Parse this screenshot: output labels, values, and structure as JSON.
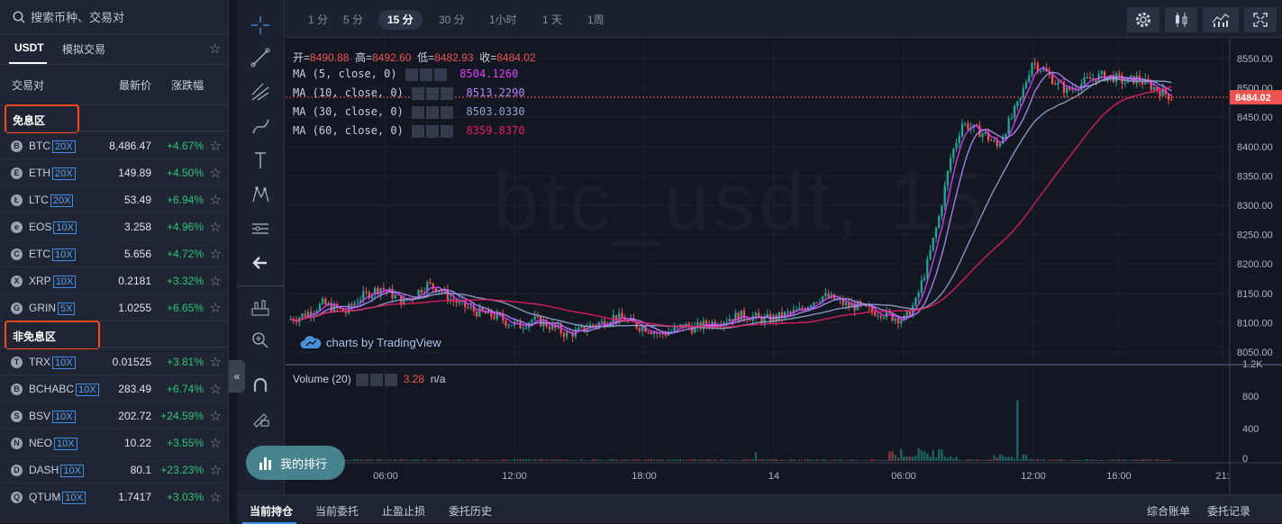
{
  "search": {
    "placeholder": "搜索币种、交易对"
  },
  "tabs": [
    {
      "label": "USDT"
    },
    {
      "label": "模拟交易"
    }
  ],
  "columns": {
    "pair": "交易对",
    "price": "最新价",
    "change": "涨跌幅"
  },
  "zones": [
    {
      "label": "免息区",
      "rows": [
        {
          "symbol": "BTC",
          "leverage": "20X",
          "price": "8,486.47",
          "change": "+4.67%",
          "icon": "B"
        },
        {
          "symbol": "ETH",
          "leverage": "20X",
          "price": "149.89",
          "change": "+4.50%",
          "icon": "E"
        },
        {
          "symbol": "LTC",
          "leverage": "20X",
          "price": "53.49",
          "change": "+6.94%",
          "icon": "Ł"
        },
        {
          "symbol": "EOS",
          "leverage": "10X",
          "price": "3.258",
          "change": "+4.96%",
          "icon": "e"
        },
        {
          "symbol": "ETC",
          "leverage": "10X",
          "price": "5.656",
          "change": "+4.72%",
          "icon": "C"
        },
        {
          "symbol": "XRP",
          "leverage": "10X",
          "price": "0.2181",
          "change": "+3.32%",
          "icon": "X"
        },
        {
          "symbol": "GRIN",
          "leverage": "5X",
          "price": "1.0255",
          "change": "+6.65%",
          "icon": "G"
        }
      ]
    },
    {
      "label": "非免息区",
      "rows": [
        {
          "symbol": "TRX",
          "leverage": "10X",
          "price": "0.01525",
          "change": "+3.81%",
          "icon": "T"
        },
        {
          "symbol": "BCHABC",
          "leverage": "10X",
          "price": "283.49",
          "change": "+6.74%",
          "icon": "B"
        },
        {
          "symbol": "BSV",
          "leverage": "10X",
          "price": "202.72",
          "change": "+24.59%",
          "icon": "S"
        },
        {
          "symbol": "NEO",
          "leverage": "10X",
          "price": "10.22",
          "change": "+3.55%",
          "icon": "N"
        },
        {
          "symbol": "DASH",
          "leverage": "10X",
          "price": "80.1",
          "change": "+23.23%",
          "icon": "D"
        },
        {
          "symbol": "QTUM",
          "leverage": "10X",
          "price": "1.7417",
          "change": "+3.03%",
          "icon": "Q"
        }
      ]
    }
  ],
  "timeframes": [
    "1 分",
    "5 分",
    "15 分",
    "30 分",
    "1小时",
    "1 天",
    "1周"
  ],
  "active_timeframe": "15 分",
  "ohlc": {
    "open_label": "开=",
    "open": "8490.88",
    "high_label": "高=",
    "high": "8492.60",
    "low_label": "低=",
    "low": "8482.93",
    "close_label": "收=",
    "close": "8484.02"
  },
  "indicators": [
    {
      "label": "MA (5, close, 0)",
      "value": "8504.1260",
      "color": "#e040fb"
    },
    {
      "label": "MA (10, close, 0)",
      "value": "8513.2290",
      "color": "#b388ff"
    },
    {
      "label": "MA (30, close, 0)",
      "value": "8503.0330",
      "color": "#90a4ce"
    },
    {
      "label": "MA (60, close, 0)",
      "value": "8359.8370",
      "color": "#e91e63"
    }
  ],
  "watermark": "btc_usdt, 15",
  "price_axis": [
    "8550.00",
    "8500.00",
    "8450.00",
    "8400.00",
    "8350.00",
    "8300.00",
    "8250.00",
    "8200.00",
    "8150.00",
    "8100.00",
    "8050.00"
  ],
  "last_price": "8484.02",
  "volume": {
    "label": "Volume (20)",
    "value": "3.28",
    "extra": "n/a",
    "axis": [
      "1.2K",
      "800",
      "400",
      "0"
    ]
  },
  "time_axis": [
    "06:00",
    "12:00",
    "18:00",
    "14",
    "06:00",
    "12:00",
    "16:00",
    "21:"
  ],
  "tradingview": "charts by TradingView",
  "rank_button": "我的排行",
  "bottom_tabs": [
    "当前持仓",
    "当前委托",
    "止盈止损",
    "委托历史"
  ],
  "bottom_right": [
    "综合账单",
    "委托记录"
  ],
  "colors": {
    "up": "#26a69a",
    "down": "#ef5350",
    "accent": "#3d8ee8",
    "highlight_border": "#ff4a1f"
  },
  "chart_data": {
    "type": "candlestick",
    "symbol": "btc_usdt",
    "interval": "15 分",
    "ylim": [
      8030,
      8570
    ],
    "ma": [
      {
        "name": "MA (5, close, 0)",
        "last": 8504.126
      },
      {
        "name": "MA (10, close, 0)",
        "last": 8513.229
      },
      {
        "name": "MA (30, close, 0)",
        "last": 8503.033
      },
      {
        "name": "MA (60, close, 0)",
        "last": 8359.837
      }
    ],
    "close_path": [
      8105,
      8110,
      8120,
      8132,
      8125,
      8118,
      8140,
      8150,
      8160,
      8148,
      8135,
      8150,
      8165,
      8158,
      8140,
      8130,
      8120,
      8115,
      8110,
      8100,
      8095,
      8105,
      8100,
      8090,
      8080,
      8085,
      8095,
      8100,
      8110,
      8105,
      8095,
      8090,
      8080,
      8085,
      8095,
      8090,
      8098,
      8102,
      8108,
      8112,
      8110,
      8105,
      8108,
      8115,
      8120,
      8135,
      8145,
      8140,
      8130,
      8128,
      8120,
      8118,
      8110,
      8105,
      8135,
      8200,
      8280,
      8380,
      8440,
      8430,
      8420,
      8400,
      8440,
      8480,
      8545,
      8530,
      8510,
      8495,
      8505,
      8515,
      8520,
      8518,
      8510,
      8516,
      8505,
      8495,
      8484.02
    ]
  }
}
